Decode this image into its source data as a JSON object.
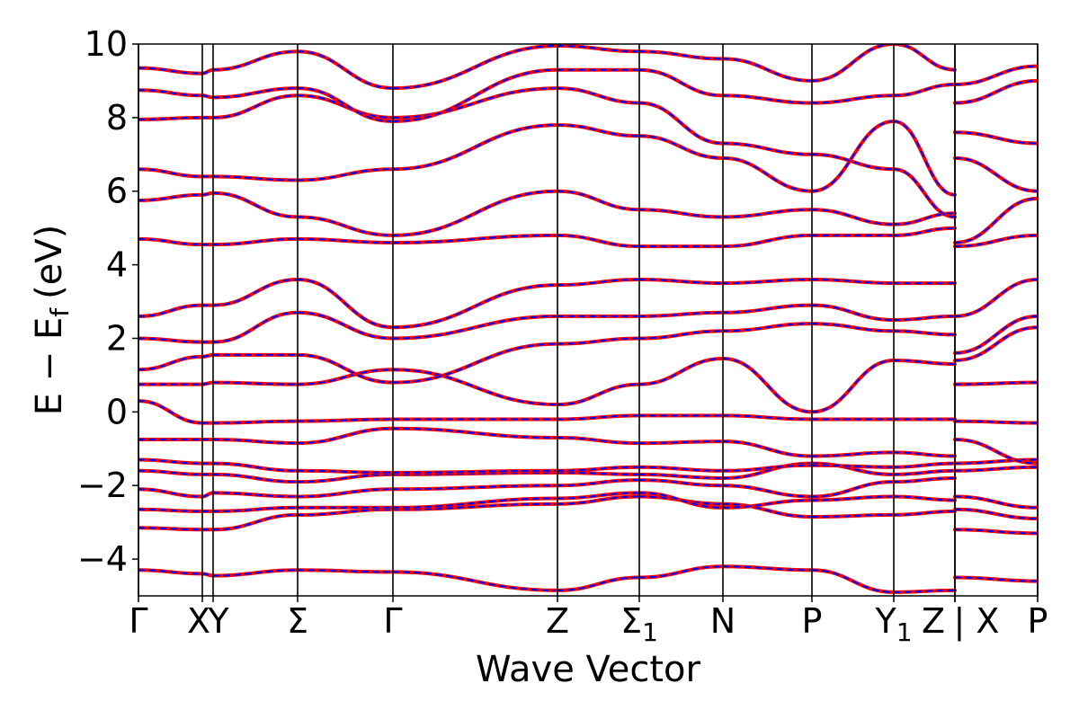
{
  "chart_data": {
    "type": "line",
    "xlabel": "Wave Vector",
    "ylabel": "E − E",
    "ylabel_sub": "f",
    "ylabel_unit": "(eV)",
    "ylim": [
      -5,
      10
    ],
    "yticks": [
      {
        "value": -4,
        "label": "−4"
      },
      {
        "value": -2,
        "label": "−2"
      },
      {
        "value": 0,
        "label": "0"
      },
      {
        "value": 2,
        "label": "2"
      },
      {
        "value": 4,
        "label": "4"
      },
      {
        "value": 6,
        "label": "6"
      },
      {
        "value": 8,
        "label": "8"
      },
      {
        "value": 10,
        "label": "10"
      }
    ],
    "kpath_range": [
      0,
      1
    ],
    "high_symmetry_points": [
      {
        "k": 0.0,
        "label": "Γ"
      },
      {
        "k": 0.071,
        "label": "X"
      },
      {
        "k": 0.083,
        "label": "Y"
      },
      {
        "k": 0.177,
        "label": "Σ"
      },
      {
        "k": 0.283,
        "label": "Γ"
      },
      {
        "k": 0.466,
        "label": "Z"
      },
      {
        "k": 0.557,
        "label": "Σ",
        "sub": "1"
      },
      {
        "k": 0.65,
        "label": "N"
      },
      {
        "k": 0.749,
        "label": "P"
      },
      {
        "k": 0.84,
        "label": "Y",
        "sub": "1"
      },
      {
        "k": 0.908,
        "label": "Z"
      },
      {
        "k": 0.908,
        "label": "| X"
      },
      {
        "k": 1.0,
        "label": "P"
      }
    ],
    "series_style": [
      {
        "color": "#ff0000",
        "linestyle": "solid",
        "width": 4
      },
      {
        "color": "#0000ff",
        "linestyle": "dashed",
        "width": 2
      }
    ],
    "segments": [
      {
        "k": [
          0.0,
          0.071
        ],
        "bands": [
          [
            -4.3,
            -4.4
          ],
          [
            -3.15,
            -3.2
          ],
          [
            -2.65,
            -2.7
          ],
          [
            -2.1,
            -2.3
          ],
          [
            -1.6,
            -1.7
          ],
          [
            -1.3,
            -1.4
          ],
          [
            -0.75,
            -0.75
          ],
          [
            0.3,
            -0.3
          ],
          [
            0.75,
            0.75
          ],
          [
            1.15,
            1.5
          ],
          [
            2.0,
            1.9
          ],
          [
            2.6,
            2.9
          ],
          [
            4.7,
            4.55
          ],
          [
            5.75,
            5.9
          ],
          [
            6.6,
            6.4
          ],
          [
            7.95,
            8.0
          ],
          [
            8.75,
            8.6
          ],
          [
            9.35,
            9.2
          ]
        ]
      },
      {
        "k": [
          0.071,
          0.083
        ],
        "bands": [
          [
            -4.4,
            -4.45
          ],
          [
            -3.2,
            -3.2
          ],
          [
            -2.7,
            -2.7
          ],
          [
            -2.3,
            -2.2
          ],
          [
            -1.7,
            -1.7
          ],
          [
            -1.4,
            -1.4
          ],
          [
            -0.75,
            -0.75
          ],
          [
            -0.3,
            -0.3
          ],
          [
            0.75,
            0.8
          ],
          [
            1.5,
            1.55
          ],
          [
            1.9,
            1.9
          ],
          [
            2.9,
            2.9
          ],
          [
            4.55,
            4.55
          ],
          [
            5.9,
            5.95
          ],
          [
            6.4,
            6.4
          ],
          [
            8.0,
            8.0
          ],
          [
            8.6,
            8.55
          ],
          [
            9.2,
            9.3
          ]
        ]
      },
      {
        "k": [
          0.083,
          0.177
        ],
        "bands": [
          [
            -4.45,
            -4.3
          ],
          [
            -3.2,
            -2.8
          ],
          [
            -2.7,
            -2.6
          ],
          [
            -2.2,
            -2.3
          ],
          [
            -1.7,
            -1.9
          ],
          [
            -1.4,
            -1.6
          ],
          [
            -0.75,
            -0.85
          ],
          [
            -0.3,
            -0.25
          ],
          [
            0.8,
            0.75
          ],
          [
            1.55,
            1.55
          ],
          [
            1.9,
            2.7
          ],
          [
            2.9,
            3.6
          ],
          [
            4.55,
            4.7
          ],
          [
            5.95,
            5.3
          ],
          [
            6.4,
            6.3
          ],
          [
            8.0,
            8.6
          ],
          [
            8.55,
            8.8
          ],
          [
            9.3,
            9.8
          ]
        ]
      },
      {
        "k": [
          0.177,
          0.283
        ],
        "bands": [
          [
            -4.3,
            -4.35
          ],
          [
            -2.8,
            -2.65
          ],
          [
            -2.6,
            -2.6
          ],
          [
            -2.3,
            -2.1
          ],
          [
            -1.9,
            -1.7
          ],
          [
            -1.6,
            -1.65
          ],
          [
            -0.85,
            -0.45
          ],
          [
            -0.25,
            -0.2
          ],
          [
            0.75,
            1.15
          ],
          [
            1.55,
            0.8
          ],
          [
            2.7,
            2.0
          ],
          [
            3.6,
            2.3
          ],
          [
            4.7,
            4.6
          ],
          [
            5.3,
            4.8
          ],
          [
            6.3,
            6.6
          ],
          [
            8.6,
            8.0
          ],
          [
            8.8,
            7.9
          ],
          [
            9.8,
            8.8
          ]
        ]
      },
      {
        "k": [
          0.283,
          0.466
        ],
        "bands": [
          [
            -4.35,
            -4.85
          ],
          [
            -2.65,
            -2.5
          ],
          [
            -2.6,
            -2.35
          ],
          [
            -2.1,
            -2.0
          ],
          [
            -1.7,
            -1.65
          ],
          [
            -1.65,
            -1.6
          ],
          [
            -0.45,
            -0.7
          ],
          [
            -0.2,
            -0.2
          ],
          [
            1.15,
            0.2
          ],
          [
            0.8,
            1.85
          ],
          [
            2.0,
            2.6
          ],
          [
            2.3,
            3.45
          ],
          [
            4.6,
            4.8
          ],
          [
            4.8,
            6.0
          ],
          [
            6.6,
            7.8
          ],
          [
            8.0,
            8.8
          ],
          [
            7.9,
            9.3
          ],
          [
            8.8,
            9.95
          ]
        ]
      },
      {
        "k": [
          0.466,
          0.557
        ],
        "bands": [
          [
            -4.85,
            -4.5
          ],
          [
            -2.5,
            -2.3
          ],
          [
            -2.35,
            -2.2
          ],
          [
            -2.0,
            -1.85
          ],
          [
            -1.65,
            -1.7
          ],
          [
            -1.6,
            -1.5
          ],
          [
            -0.7,
            -0.85
          ],
          [
            -0.2,
            -0.1
          ],
          [
            0.2,
            0.75
          ],
          [
            1.85,
            2.0
          ],
          [
            2.6,
            2.6
          ],
          [
            3.45,
            3.6
          ],
          [
            4.8,
            4.5
          ],
          [
            6.0,
            5.5
          ],
          [
            7.8,
            7.5
          ],
          [
            8.8,
            8.4
          ],
          [
            9.3,
            9.3
          ],
          [
            9.95,
            9.8
          ]
        ]
      },
      {
        "k": [
          0.557,
          0.65
        ],
        "bands": [
          [
            -4.5,
            -4.2
          ],
          [
            -2.3,
            -2.5
          ],
          [
            -2.2,
            -2.6
          ],
          [
            -1.85,
            -2.0
          ],
          [
            -1.7,
            -1.8
          ],
          [
            -1.5,
            -1.6
          ],
          [
            -0.85,
            -0.8
          ],
          [
            -0.1,
            -0.1
          ],
          [
            0.75,
            1.45
          ],
          [
            2.0,
            2.2
          ],
          [
            2.6,
            2.7
          ],
          [
            3.6,
            3.5
          ],
          [
            4.5,
            4.5
          ],
          [
            5.5,
            5.3
          ],
          [
            7.5,
            6.9
          ],
          [
            8.4,
            7.3
          ],
          [
            9.3,
            8.6
          ],
          [
            9.8,
            9.6
          ]
        ]
      },
      {
        "k": [
          0.65,
          0.749
        ],
        "bands": [
          [
            -4.2,
            -4.3
          ],
          [
            -2.5,
            -2.85
          ],
          [
            -2.6,
            -2.4
          ],
          [
            -2.0,
            -2.3
          ],
          [
            -1.8,
            -1.4
          ],
          [
            -1.6,
            -1.45
          ],
          [
            -0.8,
            -1.2
          ],
          [
            -0.1,
            -0.2
          ],
          [
            1.45,
            0.0
          ],
          [
            2.2,
            2.4
          ],
          [
            2.7,
            2.9
          ],
          [
            3.5,
            3.6
          ],
          [
            4.5,
            4.8
          ],
          [
            5.3,
            5.5
          ],
          [
            6.9,
            6.0
          ],
          [
            7.3,
            7.0
          ],
          [
            8.6,
            8.4
          ],
          [
            9.6,
            9.0
          ]
        ]
      },
      {
        "k": [
          0.749,
          0.84
        ],
        "bands": [
          [
            -4.3,
            -4.9
          ],
          [
            -2.85,
            -2.8
          ],
          [
            -2.4,
            -2.3
          ],
          [
            -2.3,
            -1.9
          ],
          [
            -1.4,
            -1.7
          ],
          [
            -1.45,
            -1.5
          ],
          [
            -1.2,
            -1.1
          ],
          [
            -0.2,
            -0.2
          ],
          [
            0.0,
            1.4
          ],
          [
            2.4,
            2.2
          ],
          [
            2.9,
            2.5
          ],
          [
            3.6,
            3.5
          ],
          [
            4.8,
            4.8
          ],
          [
            5.5,
            5.1
          ],
          [
            6.0,
            7.9
          ],
          [
            7.0,
            6.6
          ],
          [
            8.4,
            8.6
          ],
          [
            9.0,
            10.0
          ]
        ]
      },
      {
        "k": [
          0.84,
          0.908
        ],
        "bands": [
          [
            -4.9,
            -4.85
          ],
          [
            -2.8,
            -2.7
          ],
          [
            -2.3,
            -2.4
          ],
          [
            -1.9,
            -1.8
          ],
          [
            -1.7,
            -1.6
          ],
          [
            -1.5,
            -1.4
          ],
          [
            -1.1,
            -1.2
          ],
          [
            -0.2,
            -0.2
          ],
          [
            1.4,
            1.3
          ],
          [
            2.2,
            2.1
          ],
          [
            2.5,
            2.6
          ],
          [
            3.5,
            3.5
          ],
          [
            4.8,
            5.0
          ],
          [
            5.1,
            5.4
          ],
          [
            7.9,
            5.9
          ],
          [
            6.6,
            5.3
          ],
          [
            8.6,
            8.9
          ],
          [
            10.0,
            9.3
          ]
        ]
      },
      {
        "k": [
          0.908,
          1.0
        ],
        "bands": [
          [
            -4.5,
            -4.6
          ],
          [
            -3.2,
            -3.3
          ],
          [
            -2.65,
            -2.9
          ],
          [
            -2.3,
            -2.6
          ],
          [
            -1.6,
            -1.5
          ],
          [
            -1.4,
            -1.3
          ],
          [
            -0.75,
            -1.4
          ],
          [
            -0.25,
            -0.3
          ],
          [
            0.75,
            0.8
          ],
          [
            1.4,
            2.3
          ],
          [
            1.6,
            2.6
          ],
          [
            2.6,
            3.6
          ],
          [
            4.5,
            4.8
          ],
          [
            4.6,
            5.8
          ],
          [
            6.9,
            6.0
          ],
          [
            7.6,
            7.3
          ],
          [
            8.4,
            9.0
          ],
          [
            8.9,
            9.4
          ]
        ]
      }
    ]
  }
}
